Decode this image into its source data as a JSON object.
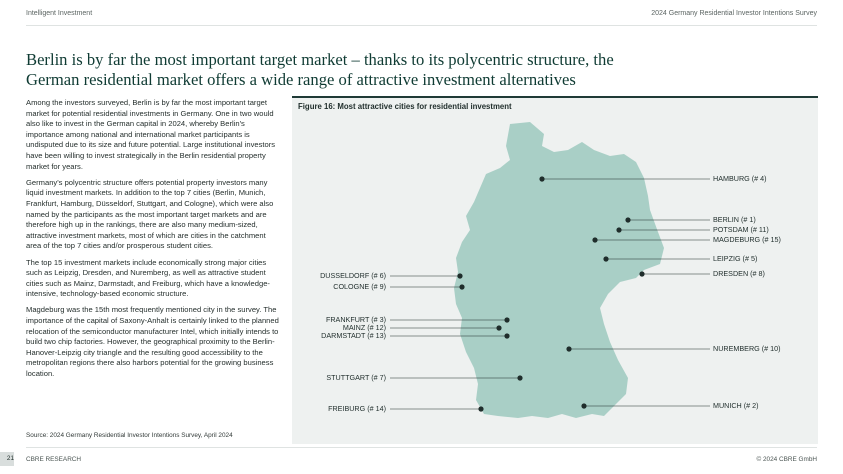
{
  "header": {
    "left": "Intelligent Investment",
    "right": "2024 Germany Residential Investor Intentions Survey"
  },
  "headline": "Berlin is by far the most important target market – thanks to its polycentric structure, the German residential market offers a wide range of attractive investment alternatives",
  "paragraphs": [
    "Among the investors surveyed, Berlin is by far the most important target market for potential residential investments in Germany. One in two would also like to invest in the German capital in 2024, whereby Berlin's importance among national and international market participants is undisputed due to its size and future potential. Large institutional investors have been willing to invest strategically in the Berlin residential property market for years.",
    "Germany's polycentric structure offers potential property investors many liquid investment markets. In addition to the top 7 cities (Berlin, Munich, Frankfurt, Hamburg, Düsseldorf, Stuttgart, and Cologne), which were also named by the participants as the most important target markets and are therefore high up in the rankings, there are also many medium-sized, attractive investment markets, most of which are cities in the catchment area of the top 7 cities and/or prosperous student cities.",
    "The top 15 investment markets include economically strong major cities such as Leipzig, Dresden, and Nuremberg, as well as attractive student cities such as Mainz, Darmstadt, and Freiburg, which have a knowledge-intensive, technology-based economic structure.",
    "Magdeburg was the 15th most frequently mentioned city in the survey. The importance of the capital of Saxony-Anhalt is certainly linked to the planned relocation of the semiconductor manufacturer Intel, which initially intends to build two chip factories. However, the geographical proximity to the Berlin-Hanover-Leipzig city triangle and the resulting good accessibility to the metropolitan regions there also harbors potential for the growing business location."
  ],
  "source": "Source: 2024 Germany Residential Investor Intentions Survey, April 2024",
  "figure": {
    "title": "Figure 16: Most attractive cities for residential investment",
    "colors": {
      "panel": "#eef1f0",
      "land": "#a9cfc6",
      "marker": "#1f2d2b"
    },
    "cities": [
      {
        "label": "HAMBURG (# 4)",
        "rank": 4
      },
      {
        "label": "BERLIN (# 1)",
        "rank": 1
      },
      {
        "label": "POTSDAM (# 11)",
        "rank": 11
      },
      {
        "label": "MAGDEBURG (# 15)",
        "rank": 15
      },
      {
        "label": "LEIPZIG (# 5)",
        "rank": 5
      },
      {
        "label": "DRESDEN (# 8)",
        "rank": 8
      },
      {
        "label": "DUSSELDORF (# 6)",
        "rank": 6
      },
      {
        "label": "COLOGNE (# 9)",
        "rank": 9
      },
      {
        "label": "FRANKFURT (# 3)",
        "rank": 3
      },
      {
        "label": "MAINZ (# 12)",
        "rank": 12
      },
      {
        "label": "DARMSTADT (# 13)",
        "rank": 13
      },
      {
        "label": "NUREMBERG (# 10)",
        "rank": 10
      },
      {
        "label": "STUTTGART (# 7)",
        "rank": 7
      },
      {
        "label": "MUNICH (# 2)",
        "rank": 2
      },
      {
        "label": "FREIBURG (# 14)",
        "rank": 14
      }
    ]
  },
  "footer": {
    "left": "CBRE RESEARCH",
    "right": "© 2024 CBRE GmbH",
    "page": "21"
  }
}
